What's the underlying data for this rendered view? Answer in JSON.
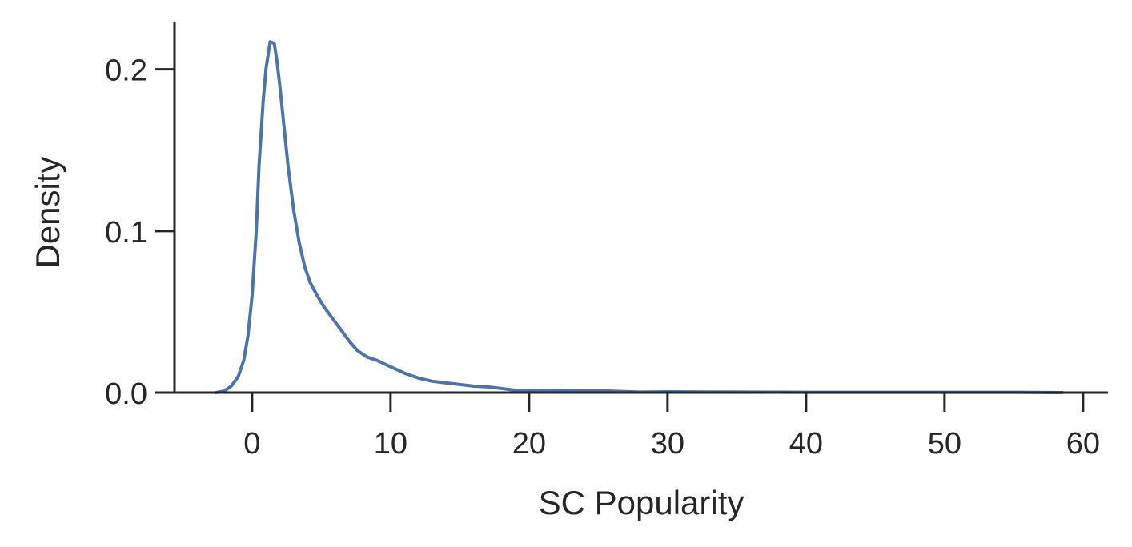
{
  "chart_data": {
    "type": "line",
    "title": "",
    "xlabel": "SC Popularity",
    "ylabel": "Density",
    "xlim": [
      -5.6,
      61.8
    ],
    "ylim": [
      0,
      0.229
    ],
    "xticks": [
      0,
      10,
      20,
      30,
      40,
      50,
      60
    ],
    "yticks": [
      0.0,
      0.1,
      0.2
    ],
    "xtick_labels": [
      "0",
      "10",
      "20",
      "30",
      "40",
      "50",
      "60"
    ],
    "ytick_labels": [
      "0.0",
      "0.1",
      "0.2"
    ],
    "grid": false,
    "legend": "none",
    "series": [
      {
        "color": "#4c72b0",
        "x": [
          -2.6,
          -2.0,
          -1.5,
          -1.0,
          -0.6,
          -0.3,
          0.0,
          0.3,
          0.5,
          0.8,
          1.0,
          1.3,
          1.6,
          1.8,
          2.0,
          2.3,
          2.6,
          3.0,
          3.4,
          3.8,
          4.2,
          4.7,
          5.2,
          5.8,
          6.4,
          7.0,
          7.6,
          8.3,
          9.0,
          10.0,
          11.0,
          12.0,
          13.0,
          14.0,
          15.0,
          16.0,
          17.0,
          18.0,
          19.0,
          20.0,
          22.0,
          25.0,
          28.0,
          30.0,
          33.0,
          36.0,
          40.0,
          45.0,
          50.0,
          55.0,
          58.5
        ],
        "y": [
          0.0,
          0.001,
          0.004,
          0.01,
          0.02,
          0.035,
          0.06,
          0.1,
          0.14,
          0.18,
          0.2,
          0.217,
          0.216,
          0.205,
          0.19,
          0.165,
          0.14,
          0.113,
          0.093,
          0.078,
          0.068,
          0.06,
          0.053,
          0.046,
          0.039,
          0.032,
          0.026,
          0.022,
          0.02,
          0.016,
          0.012,
          0.009,
          0.007,
          0.006,
          0.005,
          0.004,
          0.0035,
          0.0025,
          0.0015,
          0.0012,
          0.0015,
          0.0012,
          0.0003,
          0.0005,
          0.0004,
          0.0003,
          0.0002,
          0.0002,
          0.0002,
          0.0002,
          0.0
        ]
      }
    ]
  }
}
